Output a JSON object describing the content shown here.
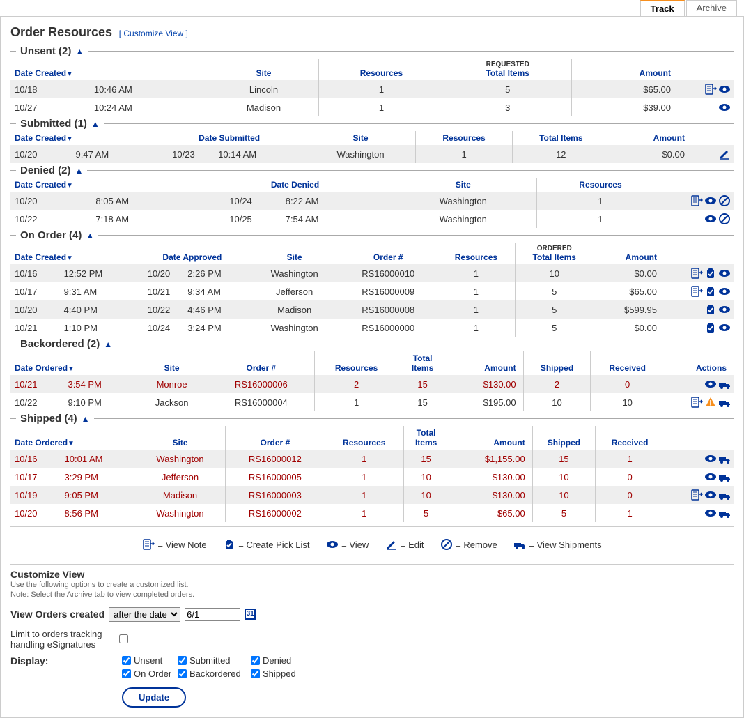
{
  "colors": {
    "link": "#0645ad",
    "accent": "#003399",
    "warn": "#f78f1e",
    "error": "#a00000",
    "alt_row_bg": "#eeeeee"
  },
  "tabs": {
    "track": "Track",
    "archive": "Archive"
  },
  "page_title": "Order Resources",
  "customize_link": "[ Customize View ]",
  "sections": {
    "unsent": {
      "title": "Unsent (2)",
      "headers": {
        "date_created": "Date Created",
        "site": "Site",
        "resources": "Resources",
        "total_items_over": "REQUESTED",
        "total_items": "Total Items",
        "amount": "Amount"
      },
      "rows": [
        {
          "date": "10/18",
          "time": "10:46 AM",
          "site": "Lincoln",
          "resources": "1",
          "items": "5",
          "amount": "$65.00",
          "actions": [
            "note",
            "view"
          ]
        },
        {
          "date": "10/27",
          "time": "10:24 AM",
          "site": "Madison",
          "resources": "1",
          "items": "3",
          "amount": "$39.00",
          "actions": [
            "view"
          ]
        }
      ]
    },
    "submitted": {
      "title": "Submitted (1)",
      "headers": {
        "date_created": "Date Created",
        "date_submitted": "Date Submitted",
        "site": "Site",
        "resources": "Resources",
        "total_items": "Total Items",
        "amount": "Amount"
      },
      "rows": [
        {
          "date": "10/20",
          "time": "9:47 AM",
          "sdate": "10/23",
          "stime": "10:14 AM",
          "site": "Washington",
          "resources": "1",
          "items": "12",
          "amount": "$0.00",
          "actions": [
            "edit"
          ]
        }
      ]
    },
    "denied": {
      "title": "Denied (2)",
      "headers": {
        "date_created": "Date Created",
        "date_denied": "Date Denied",
        "site": "Site",
        "resources": "Resources"
      },
      "rows": [
        {
          "date": "10/20",
          "time": "8:05 AM",
          "ddate": "10/24",
          "dtime": "8:22 AM",
          "site": "Washington",
          "resources": "1",
          "actions": [
            "note",
            "view",
            "remove"
          ]
        },
        {
          "date": "10/22",
          "time": "7:18 AM",
          "ddate": "10/25",
          "dtime": "7:54 AM",
          "site": "Washington",
          "resources": "1",
          "actions": [
            "view",
            "remove"
          ]
        }
      ]
    },
    "onorder": {
      "title": "On Order (4)",
      "headers": {
        "date_created": "Date Created",
        "date_approved": "Date Approved",
        "site": "Site",
        "order_num": "Order #",
        "resources": "Resources",
        "total_items_over": "ORDERED",
        "total_items": "Total Items",
        "amount": "Amount"
      },
      "rows": [
        {
          "date": "10/16",
          "time": "12:52 PM",
          "adate": "10/20",
          "atime": "2:26 PM",
          "site": "Washington",
          "order": "RS16000010",
          "resources": "1",
          "items": "10",
          "amount": "$0.00",
          "actions": [
            "note",
            "pick",
            "view"
          ]
        },
        {
          "date": "10/17",
          "time": "9:31 AM",
          "adate": "10/21",
          "atime": "9:34 AM",
          "site": "Jefferson",
          "order": "RS16000009",
          "resources": "1",
          "items": "5",
          "amount": "$65.00",
          "actions": [
            "note",
            "pick",
            "view"
          ]
        },
        {
          "date": "10/20",
          "time": "4:40 PM",
          "adate": "10/22",
          "atime": "4:46 PM",
          "site": "Madison",
          "order": "RS16000008",
          "resources": "1",
          "items": "5",
          "amount": "$599.95",
          "actions": [
            "pick",
            "view"
          ]
        },
        {
          "date": "10/21",
          "time": "1:10 PM",
          "adate": "10/24",
          "atime": "3:24 PM",
          "site": "Washington",
          "order": "RS16000000",
          "resources": "1",
          "items": "5",
          "amount": "$0.00",
          "actions": [
            "pick",
            "view"
          ]
        }
      ]
    },
    "backordered": {
      "title": "Backordered (2)",
      "headers": {
        "date_ordered": "Date Ordered",
        "site": "Site",
        "order_num": "Order #",
        "resources": "Resources",
        "total_items": "Total\nItems",
        "amount": "Amount",
        "shipped": "Shipped",
        "received": "Received",
        "actions": "Actions"
      },
      "rows": [
        {
          "red": true,
          "date": "10/21",
          "time": "3:54 PM",
          "site": "Monroe",
          "order": "RS16000006",
          "resources": "2",
          "items": "15",
          "amount": "$130.00",
          "shipped": "2",
          "received": "0",
          "actions": [
            "view",
            "ship"
          ]
        },
        {
          "red": false,
          "date": "10/22",
          "time": "9:10 PM",
          "site": "Jackson",
          "order": "RS16000004",
          "resources": "1",
          "items": "15",
          "amount": "$195.00",
          "shipped": "10",
          "received": "10",
          "actions": [
            "note",
            "alert",
            "ship"
          ]
        }
      ]
    },
    "shipped": {
      "title": "Shipped (4)",
      "headers": {
        "date_ordered": "Date Ordered",
        "site": "Site",
        "order_num": "Order #",
        "resources": "Resources",
        "total_items": "Total\nItems",
        "amount": "Amount",
        "shipped": "Shipped",
        "received": "Received"
      },
      "rows": [
        {
          "red": true,
          "date": "10/16",
          "time": "10:01 AM",
          "site": "Washington",
          "order": "RS16000012",
          "resources": "1",
          "items": "15",
          "amount": "$1,155.00",
          "shipped": "15",
          "received": "1",
          "actions": [
            "view",
            "ship"
          ]
        },
        {
          "red": true,
          "date": "10/17",
          "time": "3:29 PM",
          "site": "Jefferson",
          "order": "RS16000005",
          "resources": "1",
          "items": "10",
          "amount": "$130.00",
          "shipped": "10",
          "received": "0",
          "actions": [
            "view",
            "ship"
          ]
        },
        {
          "red": true,
          "date": "10/19",
          "time": "9:05 PM",
          "site": "Madison",
          "order": "RS16000003",
          "resources": "1",
          "items": "10",
          "amount": "$130.00",
          "shipped": "10",
          "received": "0",
          "actions": [
            "note",
            "view",
            "ship"
          ]
        },
        {
          "red": true,
          "date": "10/20",
          "time": "8:56 PM",
          "site": "Washington",
          "order": "RS16000002",
          "resources": "1",
          "items": "5",
          "amount": "$65.00",
          "shipped": "5",
          "received": "1",
          "actions": [
            "view",
            "ship"
          ]
        }
      ]
    }
  },
  "legend": {
    "note": "= View Note",
    "pick": "= Create Pick List",
    "view": "= View",
    "edit": "= Edit",
    "remove": "= Remove",
    "ship": "= View Shipments"
  },
  "customize": {
    "title": "Customize View",
    "desc1": "Use the following options to create a customized list.",
    "desc2": "Note: Select the Archive tab to view completed orders.",
    "view_orders_label": "View Orders created",
    "select_value": "after the date",
    "date_value": "6/1",
    "cal_text": "31",
    "limit_label": "Limit to orders tracking handling eSignatures",
    "display_label": "Display:",
    "checkboxes": {
      "unsent": "Unsent",
      "submitted": "Submitted",
      "denied": "Denied",
      "onorder": "On Order",
      "backordered": "Backordered",
      "shipped": "Shipped"
    },
    "update_btn": "Update"
  }
}
